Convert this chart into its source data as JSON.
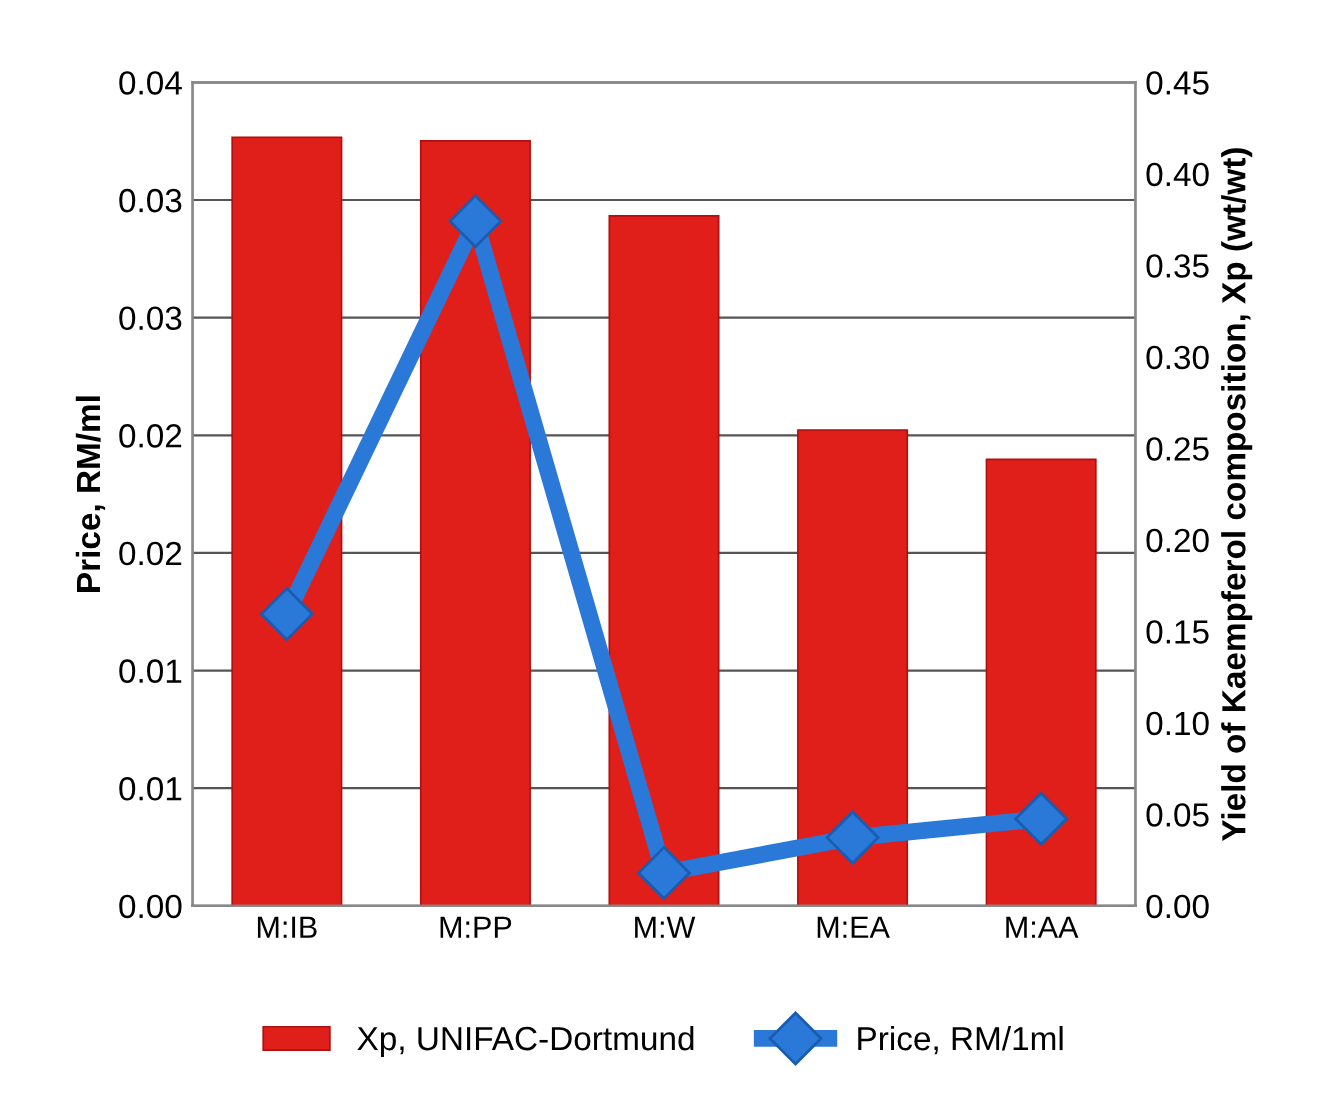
{
  "chart_data": {
    "type": "bar",
    "categories": [
      "M:IB",
      "M:PP",
      "M:W",
      "M:EA",
      "M:AA"
    ],
    "series": [
      {
        "name": "Xp, UNIFAC-Dortmund",
        "axis": "y2",
        "color": "#e01e1a",
        "values": [
          0.42,
          0.418,
          0.377,
          0.26,
          0.244
        ]
      },
      {
        "name": "Price, RM/1ml",
        "type": "line",
        "color": "#2a78d8",
        "marker": "diamond",
        "values": [
          0.0124,
          0.0291,
          0.0014,
          0.0029,
          0.0037
        ]
      }
    ],
    "ylabel": "Price, RM/ml",
    "y2label": "Yield of Kaempferol composition, Xp (wt/wt)",
    "ylim": [
      0,
      0.035
    ],
    "yticks": [
      {
        "value": 0,
        "label": "0.00"
      },
      {
        "value": 0.005,
        "label": "0.01"
      },
      {
        "value": 0.01,
        "label": "0.01"
      },
      {
        "value": 0.015,
        "label": "0.02"
      },
      {
        "value": 0.02,
        "label": "0.02"
      },
      {
        "value": 0.025,
        "label": "0.03"
      },
      {
        "value": 0.03,
        "label": "0.03"
      },
      {
        "value": 0.035,
        "label": "0.04"
      }
    ],
    "y2lim": [
      0,
      0.45
    ],
    "y2ticks": [
      {
        "value": 0,
        "label": "0.00"
      },
      {
        "value": 0.05,
        "label": "0.05"
      },
      {
        "value": 0.1,
        "label": "0.10"
      },
      {
        "value": 0.15,
        "label": "0.15"
      },
      {
        "value": 0.2,
        "label": "0.20"
      },
      {
        "value": 0.25,
        "label": "0.25"
      },
      {
        "value": 0.3,
        "label": "0.30"
      },
      {
        "value": 0.35,
        "label": "0.35"
      },
      {
        "value": 0.4,
        "label": "0.40"
      },
      {
        "value": 0.45,
        "label": "0.45"
      }
    ],
    "grid": "y",
    "legend": "bottom"
  }
}
